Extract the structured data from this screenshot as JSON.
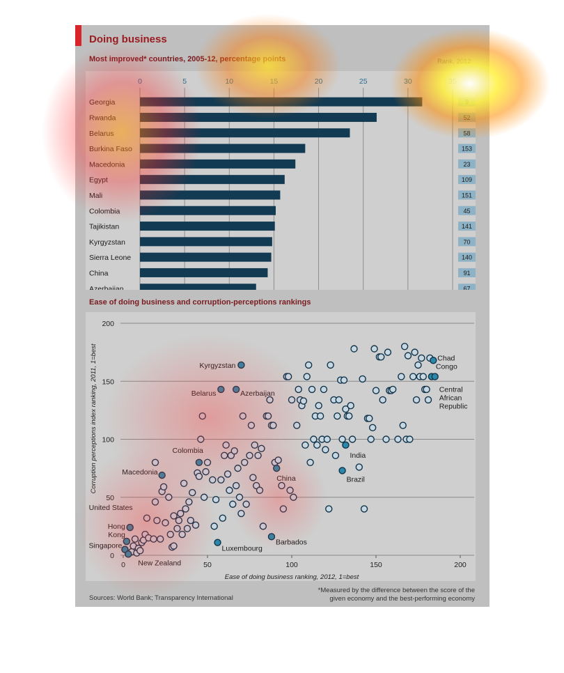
{
  "header": {
    "title": "Doing business",
    "bar_subtitle": "Most improved* countries, 2005-12, percentage points",
    "rank_header": "Rank, 2012",
    "scatter_subtitle": "Ease of doing business and corruption-perceptions rankings"
  },
  "footer": {
    "sources": "Sources: World Bank; Transparency International",
    "note_line1": "*Measured by the difference between the score of the",
    "note_line2": "given economy and the best-performing economy"
  },
  "colors": {
    "bar": "#123a52",
    "rank_box": "#8fb3c6",
    "point_open_fill": "#c8d8e2",
    "point_highlight": "#2b88a8",
    "point_stroke": "#10334a",
    "grid": "#8a8a8a"
  },
  "chart_data": [
    {
      "type": "bar",
      "orientation": "horizontal",
      "title": "Most improved* countries, 2005-12, percentage points",
      "categories": [
        "Georgia",
        "Rwanda",
        "Belarus",
        "Burkina Faso",
        "Macedonia",
        "Egypt",
        "Mali",
        "Colombia",
        "Tajikistan",
        "Kyrgyzstan",
        "Sierra Leone",
        "China",
        "Azerbaijan"
      ],
      "values": [
        31.6,
        26.5,
        23.5,
        18.5,
        17.4,
        16.2,
        15.7,
        15.2,
        15.1,
        14.8,
        14.7,
        14.3,
        13.0
      ],
      "rank_2012": [
        9,
        52,
        58,
        153,
        23,
        109,
        151,
        45,
        141,
        70,
        140,
        91,
        67
      ],
      "xlim": [
        0,
        35
      ],
      "xticks": [
        0,
        5,
        10,
        15,
        20,
        25,
        30,
        35
      ],
      "grid": true
    },
    {
      "type": "scatter",
      "title": "Ease of doing business and corruption-perceptions rankings",
      "xlabel": "Ease of doing business ranking, 2012, 1=best",
      "ylabel": "Corruption perceptions index ranking, 2011, 1=best",
      "xlim": [
        0,
        200
      ],
      "ylim": [
        0,
        200
      ],
      "xticks": [
        0,
        50,
        100,
        150,
        200
      ],
      "yticks": [
        0,
        50,
        100,
        150,
        200
      ],
      "grid": true,
      "labeled_points": [
        {
          "label": "Kyrgyzstan",
          "x": 70,
          "y": 164
        },
        {
          "label": "Belarus",
          "x": 58,
          "y": 143
        },
        {
          "label": "Azerbaijan",
          "x": 67,
          "y": 143
        },
        {
          "label": "Chad",
          "x": 184,
          "y": 168
        },
        {
          "label": "Congo",
          "x": 183,
          "y": 154
        },
        {
          "label": "Central",
          "x": 185,
          "y": 154
        },
        {
          "label": "African",
          "x": 185,
          "y": 154
        },
        {
          "label": "Republic",
          "x": 185,
          "y": 154
        },
        {
          "label": "Colombia",
          "x": 45,
          "y": 80
        },
        {
          "label": "India",
          "x": 132,
          "y": 95
        },
        {
          "label": "Macedonia",
          "x": 23,
          "y": 69
        },
        {
          "label": "China",
          "x": 91,
          "y": 75
        },
        {
          "label": "Brazil",
          "x": 130,
          "y": 73
        },
        {
          "label": "United States",
          "x": 4,
          "y": 24
        },
        {
          "label": "Hong",
          "x": 2,
          "y": 12
        },
        {
          "label": "Kong",
          "x": 2,
          "y": 12
        },
        {
          "label": "Singapore",
          "x": 1,
          "y": 5
        },
        {
          "label": "New Zealand",
          "x": 3,
          "y": 1
        },
        {
          "label": "Luxembourg",
          "x": 56,
          "y": 11
        },
        {
          "label": "Barbados",
          "x": 88,
          "y": 16
        }
      ],
      "points": [
        [
          1,
          5
        ],
        [
          2,
          12
        ],
        [
          3,
          1
        ],
        [
          4,
          24
        ],
        [
          5,
          3
        ],
        [
          6,
          8
        ],
        [
          7,
          14
        ],
        [
          8,
          2
        ],
        [
          9,
          6
        ],
        [
          10,
          4
        ],
        [
          11,
          11
        ],
        [
          12,
          13
        ],
        [
          13,
          18
        ],
        [
          14,
          32
        ],
        [
          15,
          15
        ],
        [
          18,
          14
        ],
        [
          19,
          46
        ],
        [
          19,
          80
        ],
        [
          20,
          30
        ],
        [
          22,
          14
        ],
        [
          23,
          55
        ],
        [
          24,
          59
        ],
        [
          25,
          28
        ],
        [
          27,
          50
        ],
        [
          28,
          18
        ],
        [
          29,
          7
        ],
        [
          30,
          34
        ],
        [
          30,
          8
        ],
        [
          32,
          23
        ],
        [
          33,
          30
        ],
        [
          34,
          36
        ],
        [
          35,
          18
        ],
        [
          36,
          62
        ],
        [
          37,
          40
        ],
        [
          38,
          23
        ],
        [
          39,
          46
        ],
        [
          40,
          30
        ],
        [
          41,
          54
        ],
        [
          43,
          26
        ],
        [
          44,
          71
        ],
        [
          45,
          68
        ],
        [
          46,
          100
        ],
        [
          47,
          120
        ],
        [
          48,
          50
        ],
        [
          49,
          72
        ],
        [
          50,
          80
        ],
        [
          53,
          65
        ],
        [
          54,
          25
        ],
        [
          55,
          48
        ],
        [
          58,
          65
        ],
        [
          59,
          32
        ],
        [
          60,
          86
        ],
        [
          61,
          95
        ],
        [
          62,
          70
        ],
        [
          63,
          56
        ],
        [
          64,
          86
        ],
        [
          65,
          44
        ],
        [
          66,
          90
        ],
        [
          67,
          60
        ],
        [
          68,
          75
        ],
        [
          69,
          50
        ],
        [
          70,
          36
        ],
        [
          71,
          120
        ],
        [
          72,
          80
        ],
        [
          73,
          44
        ],
        [
          75,
          86
        ],
        [
          76,
          112
        ],
        [
          77,
          67
        ],
        [
          78,
          95
        ],
        [
          79,
          60
        ],
        [
          80,
          86
        ],
        [
          81,
          56
        ],
        [
          82,
          92
        ],
        [
          83,
          25
        ],
        [
          85,
          120
        ],
        [
          86,
          120
        ],
        [
          87,
          134
        ],
        [
          88,
          112
        ],
        [
          89,
          112
        ],
        [
          90,
          80
        ],
        [
          92,
          82
        ],
        [
          94,
          60
        ],
        [
          95,
          40
        ],
        [
          97,
          154
        ],
        [
          98,
          154
        ],
        [
          99,
          56
        ],
        [
          100,
          134
        ],
        [
          101,
          50
        ],
        [
          103,
          112
        ],
        [
          104,
          143
        ],
        [
          105,
          134
        ],
        [
          106,
          129
        ],
        [
          107,
          133
        ],
        [
          108,
          95
        ],
        [
          109,
          154
        ],
        [
          110,
          164
        ],
        [
          111,
          80
        ],
        [
          112,
          143
        ],
        [
          113,
          100
        ],
        [
          114,
          120
        ],
        [
          115,
          95
        ],
        [
          116,
          129
        ],
        [
          117,
          120
        ],
        [
          118,
          100
        ],
        [
          119,
          143
        ],
        [
          120,
          91
        ],
        [
          121,
          100
        ],
        [
          122,
          40
        ],
        [
          123,
          164
        ],
        [
          125,
          134
        ],
        [
          126,
          86
        ],
        [
          127,
          120
        ],
        [
          128,
          134
        ],
        [
          129,
          151
        ],
        [
          130,
          100
        ],
        [
          131,
          151
        ],
        [
          132,
          126
        ],
        [
          133,
          120
        ],
        [
          134,
          120
        ],
        [
          135,
          129
        ],
        [
          136,
          100
        ],
        [
          137,
          178
        ],
        [
          140,
          76
        ],
        [
          142,
          152
        ],
        [
          143,
          40
        ],
        [
          145,
          118
        ],
        [
          146,
          118
        ],
        [
          147,
          100
        ],
        [
          148,
          110
        ],
        [
          149,
          178
        ],
        [
          150,
          142
        ],
        [
          152,
          171
        ],
        [
          153,
          171
        ],
        [
          154,
          134
        ],
        [
          156,
          100
        ],
        [
          157,
          175
        ],
        [
          158,
          142
        ],
        [
          159,
          142
        ],
        [
          160,
          143
        ],
        [
          163,
          100
        ],
        [
          165,
          154
        ],
        [
          166,
          112
        ],
        [
          167,
          180
        ],
        [
          168,
          100
        ],
        [
          169,
          172
        ],
        [
          170,
          100
        ],
        [
          172,
          154
        ],
        [
          173,
          175
        ],
        [
          174,
          134
        ],
        [
          175,
          164
        ],
        [
          176,
          154
        ],
        [
          177,
          170
        ],
        [
          178,
          154
        ],
        [
          179,
          143
        ],
        [
          180,
          143
        ],
        [
          181,
          134
        ],
        [
          182,
          170
        ]
      ]
    }
  ]
}
